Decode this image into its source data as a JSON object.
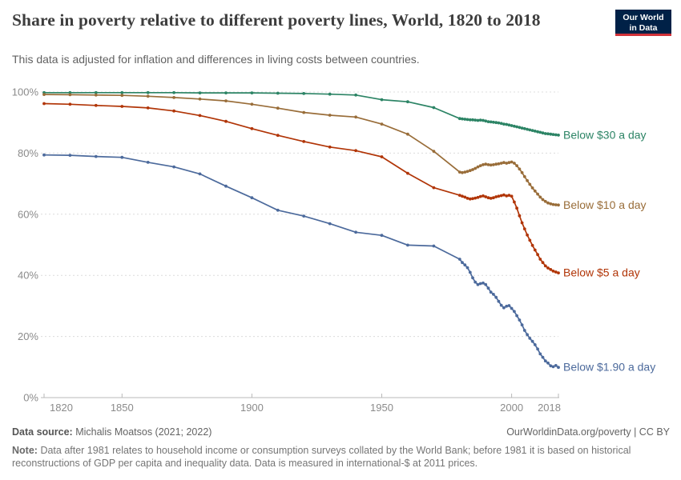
{
  "header": {
    "title": "Share in poverty relative to different poverty lines, World, 1820 to 2018",
    "subtitle": "This data is adjusted for inflation and differences in living costs between countries."
  },
  "logo": {
    "line1": "Our World",
    "line2": "in Data"
  },
  "footer": {
    "source_label": "Data source:",
    "source_value": "Michalis Moatsos (2021; 2022)",
    "link": "OurWorldinData.org/poverty | CC BY",
    "note_label": "Note:",
    "note_text": "Data after 1981 relates to household income or consumption surveys collated by the World Bank; before 1981 it is based on historical reconstructions of GDP per capita and inequality data. Data is measured in international-$ at 2011 prices."
  },
  "chart_data": {
    "type": "line",
    "title": "Share in poverty relative to different poverty lines, World, 1820 to 2018",
    "xlabel": "",
    "ylabel": "",
    "xlim": [
      1820,
      2018
    ],
    "ylim": [
      0,
      100
    ],
    "x_ticks": [
      1820,
      1850,
      1900,
      1950,
      2000,
      2018
    ],
    "y_ticks": [
      0,
      20,
      40,
      60,
      80,
      100
    ],
    "y_tick_suffix": "%",
    "grid": "horizontal-dashed",
    "legend_position": "end-of-line-labels",
    "series": [
      {
        "name": "Below $30 a day",
        "color": "#2C8465",
        "points": [
          [
            1820,
            99.8
          ],
          [
            1830,
            99.8
          ],
          [
            1840,
            99.8
          ],
          [
            1850,
            99.8
          ],
          [
            1860,
            99.8
          ],
          [
            1870,
            99.8
          ],
          [
            1880,
            99.7
          ],
          [
            1890,
            99.7
          ],
          [
            1900,
            99.7
          ],
          [
            1910,
            99.6
          ],
          [
            1920,
            99.5
          ],
          [
            1930,
            99.3
          ],
          [
            1940,
            99.0
          ],
          [
            1950,
            97.5
          ],
          [
            1960,
            96.8
          ],
          [
            1970,
            94.9
          ],
          [
            1980,
            91.3
          ],
          [
            1981,
            91.2
          ],
          [
            1982,
            91.1
          ],
          [
            1983,
            91.0
          ],
          [
            1984,
            90.9
          ],
          [
            1985,
            90.9
          ],
          [
            1986,
            90.8
          ],
          [
            1987,
            90.7
          ],
          [
            1988,
            90.8
          ],
          [
            1989,
            90.7
          ],
          [
            1990,
            90.5
          ],
          [
            1991,
            90.3
          ],
          [
            1992,
            90.2
          ],
          [
            1993,
            90.1
          ],
          [
            1994,
            90.0
          ],
          [
            1995,
            89.9
          ],
          [
            1996,
            89.7
          ],
          [
            1997,
            89.5
          ],
          [
            1998,
            89.4
          ],
          [
            1999,
            89.2
          ],
          [
            2000,
            89.0
          ],
          [
            2001,
            88.8
          ],
          [
            2002,
            88.6
          ],
          [
            2003,
            88.4
          ],
          [
            2004,
            88.2
          ],
          [
            2005,
            88.0
          ],
          [
            2006,
            87.8
          ],
          [
            2007,
            87.6
          ],
          [
            2008,
            87.4
          ],
          [
            2009,
            87.2
          ],
          [
            2010,
            87.0
          ],
          [
            2011,
            86.8
          ],
          [
            2012,
            86.6
          ],
          [
            2013,
            86.4
          ],
          [
            2014,
            86.3
          ],
          [
            2015,
            86.2
          ],
          [
            2016,
            86.1
          ],
          [
            2017,
            86.0
          ],
          [
            2018,
            85.9
          ]
        ]
      },
      {
        "name": "Below $10 a day",
        "color": "#996D39",
        "points": [
          [
            1820,
            99.2
          ],
          [
            1830,
            99.1
          ],
          [
            1840,
            99.0
          ],
          [
            1850,
            98.9
          ],
          [
            1860,
            98.6
          ],
          [
            1870,
            98.2
          ],
          [
            1880,
            97.7
          ],
          [
            1890,
            97.1
          ],
          [
            1900,
            96.0
          ],
          [
            1910,
            94.7
          ],
          [
            1920,
            93.3
          ],
          [
            1930,
            92.4
          ],
          [
            1940,
            91.8
          ],
          [
            1950,
            89.5
          ],
          [
            1960,
            86.2
          ],
          [
            1970,
            80.6
          ],
          [
            1980,
            73.8
          ],
          [
            1981,
            73.6
          ],
          [
            1982,
            73.8
          ],
          [
            1983,
            74.0
          ],
          [
            1984,
            74.3
          ],
          [
            1985,
            74.6
          ],
          [
            1986,
            75.0
          ],
          [
            1987,
            75.5
          ],
          [
            1988,
            75.9
          ],
          [
            1989,
            76.2
          ],
          [
            1990,
            76.4
          ],
          [
            1991,
            76.2
          ],
          [
            1992,
            76.1
          ],
          [
            1993,
            76.2
          ],
          [
            1994,
            76.4
          ],
          [
            1995,
            76.5
          ],
          [
            1996,
            76.7
          ],
          [
            1997,
            76.9
          ],
          [
            1998,
            76.7
          ],
          [
            1999,
            76.9
          ],
          [
            2000,
            77.1
          ],
          [
            2001,
            76.7
          ],
          [
            2002,
            75.9
          ],
          [
            2003,
            74.8
          ],
          [
            2004,
            73.6
          ],
          [
            2005,
            72.3
          ],
          [
            2006,
            71.0
          ],
          [
            2007,
            69.8
          ],
          [
            2008,
            68.6
          ],
          [
            2009,
            67.6
          ],
          [
            2010,
            66.6
          ],
          [
            2011,
            65.6
          ],
          [
            2012,
            64.8
          ],
          [
            2013,
            64.2
          ],
          [
            2014,
            63.7
          ],
          [
            2015,
            63.4
          ],
          [
            2016,
            63.2
          ],
          [
            2017,
            63.1
          ],
          [
            2018,
            63.0
          ]
        ]
      },
      {
        "name": "Below $5 a day",
        "color": "#B13507",
        "points": [
          [
            1820,
            96.2
          ],
          [
            1830,
            96.0
          ],
          [
            1840,
            95.6
          ],
          [
            1850,
            95.3
          ],
          [
            1860,
            94.8
          ],
          [
            1870,
            93.8
          ],
          [
            1880,
            92.3
          ],
          [
            1890,
            90.4
          ],
          [
            1900,
            88.0
          ],
          [
            1910,
            85.8
          ],
          [
            1920,
            83.8
          ],
          [
            1930,
            82.0
          ],
          [
            1940,
            80.8
          ],
          [
            1950,
            78.8
          ],
          [
            1960,
            73.4
          ],
          [
            1970,
            68.7
          ],
          [
            1980,
            66.2
          ],
          [
            1981,
            65.9
          ],
          [
            1982,
            65.6
          ],
          [
            1983,
            65.2
          ],
          [
            1984,
            65.0
          ],
          [
            1985,
            65.1
          ],
          [
            1986,
            65.3
          ],
          [
            1987,
            65.5
          ],
          [
            1988,
            65.8
          ],
          [
            1989,
            66.0
          ],
          [
            1990,
            65.7
          ],
          [
            1991,
            65.4
          ],
          [
            1992,
            65.2
          ],
          [
            1993,
            65.4
          ],
          [
            1994,
            65.7
          ],
          [
            1995,
            65.9
          ],
          [
            1996,
            66.1
          ],
          [
            1997,
            66.3
          ],
          [
            1998,
            66.0
          ],
          [
            1999,
            66.2
          ],
          [
            2000,
            65.9
          ],
          [
            2001,
            64.0
          ],
          [
            2002,
            62.0
          ],
          [
            2003,
            59.5
          ],
          [
            2004,
            57.2
          ],
          [
            2005,
            55.2
          ],
          [
            2006,
            53.2
          ],
          [
            2007,
            51.5
          ],
          [
            2008,
            49.8
          ],
          [
            2009,
            48.3
          ],
          [
            2010,
            46.8
          ],
          [
            2011,
            45.3
          ],
          [
            2012,
            44.2
          ],
          [
            2013,
            43.1
          ],
          [
            2014,
            42.4
          ],
          [
            2015,
            41.9
          ],
          [
            2016,
            41.4
          ],
          [
            2017,
            41.1
          ],
          [
            2018,
            40.8
          ]
        ]
      },
      {
        "name": "Below $1.90 a day",
        "color": "#4C6A9C",
        "points": [
          [
            1820,
            79.4
          ],
          [
            1830,
            79.3
          ],
          [
            1840,
            78.9
          ],
          [
            1850,
            78.6
          ],
          [
            1860,
            77.0
          ],
          [
            1870,
            75.5
          ],
          [
            1880,
            73.2
          ],
          [
            1890,
            69.2
          ],
          [
            1900,
            65.4
          ],
          [
            1910,
            61.3
          ],
          [
            1920,
            59.4
          ],
          [
            1930,
            56.9
          ],
          [
            1940,
            54.1
          ],
          [
            1950,
            53.1
          ],
          [
            1960,
            49.9
          ],
          [
            1970,
            49.6
          ],
          [
            1980,
            45.3
          ],
          [
            1981,
            44.2
          ],
          [
            1982,
            43.4
          ],
          [
            1983,
            42.5
          ],
          [
            1984,
            41.0
          ],
          [
            1985,
            39.2
          ],
          [
            1986,
            37.8
          ],
          [
            1987,
            37.0
          ],
          [
            1988,
            37.3
          ],
          [
            1989,
            37.5
          ],
          [
            1990,
            37.0
          ],
          [
            1991,
            35.8
          ],
          [
            1992,
            34.5
          ],
          [
            1993,
            33.8
          ],
          [
            1994,
            32.8
          ],
          [
            1995,
            31.5
          ],
          [
            1996,
            30.2
          ],
          [
            1997,
            29.4
          ],
          [
            1998,
            29.9
          ],
          [
            1999,
            30.1
          ],
          [
            2000,
            29.2
          ],
          [
            2001,
            28.2
          ],
          [
            2002,
            26.8
          ],
          [
            2003,
            25.4
          ],
          [
            2004,
            23.8
          ],
          [
            2005,
            22.0
          ],
          [
            2006,
            20.6
          ],
          [
            2007,
            19.4
          ],
          [
            2008,
            18.4
          ],
          [
            2009,
            17.3
          ],
          [
            2010,
            15.9
          ],
          [
            2011,
            14.3
          ],
          [
            2012,
            13.2
          ],
          [
            2013,
            12.0
          ],
          [
            2014,
            11.3
          ],
          [
            2015,
            10.4
          ],
          [
            2016,
            10.1
          ],
          [
            2017,
            10.5
          ],
          [
            2018,
            9.9
          ]
        ]
      }
    ]
  }
}
